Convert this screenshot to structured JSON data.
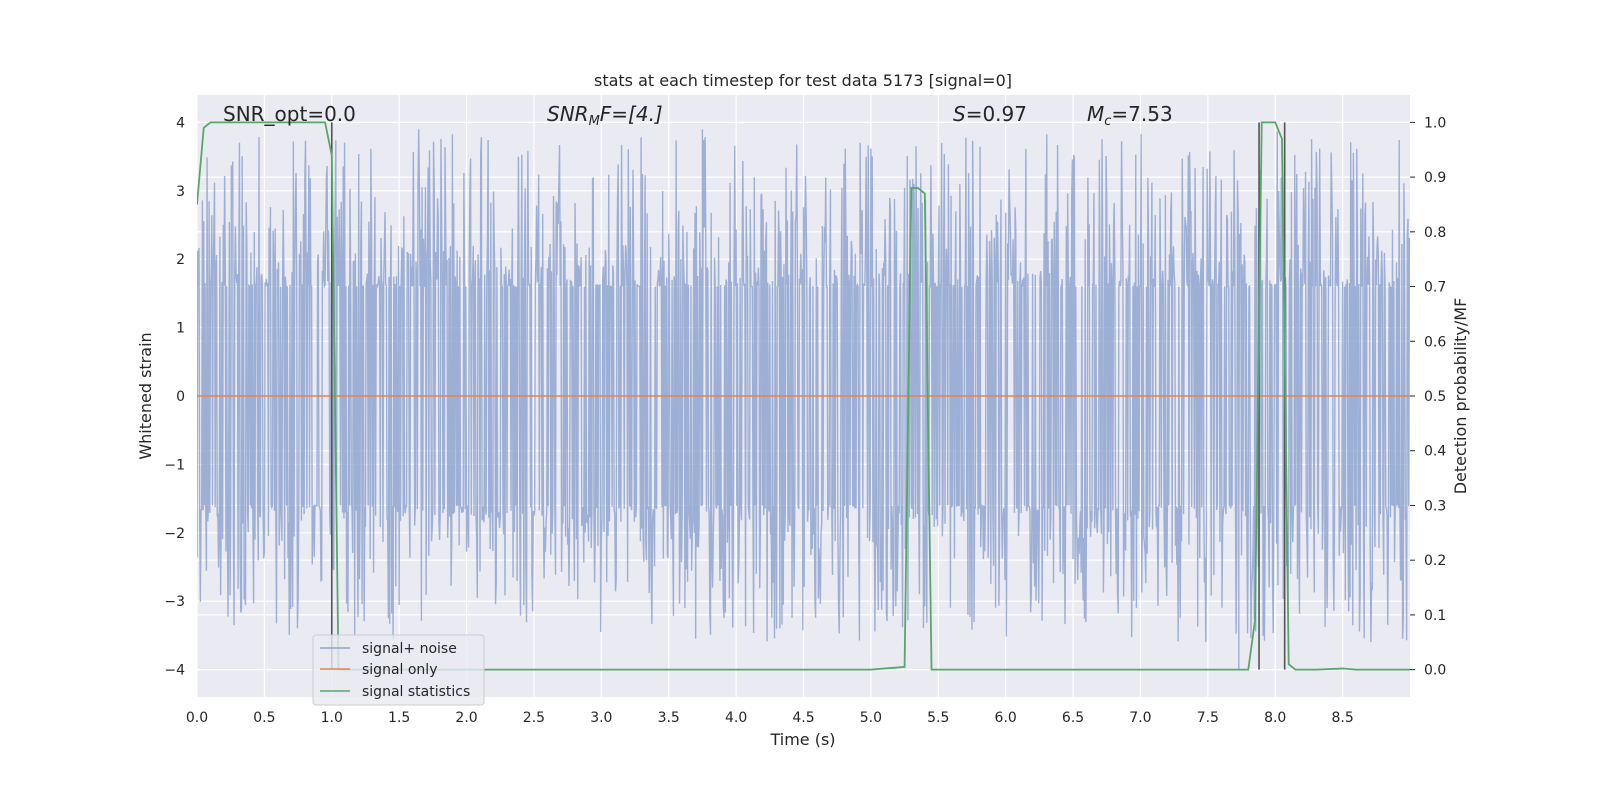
{
  "chart_data": {
    "type": "line",
    "title": "stats at each timestep for test data 5173 [signal=0]",
    "xlabel": "Time (s)",
    "ylabel": "Whitened strain",
    "ylabel_right": "Detection probability/MF",
    "xlim": [
      0.0,
      9.0
    ],
    "ylim_left": [
      -4.4,
      4.4
    ],
    "ylim_right": [
      -0.05,
      1.05
    ],
    "x_ticks": [
      "0.0",
      "0.5",
      "1.0",
      "1.5",
      "2.0",
      "2.5",
      "3.0",
      "3.5",
      "4.0",
      "4.5",
      "5.0",
      "5.5",
      "6.0",
      "6.5",
      "7.0",
      "7.5",
      "8.0",
      "8.5"
    ],
    "y_ticks_left": [
      "4",
      "3",
      "2",
      "1",
      "0",
      "−1",
      "−2",
      "−3",
      "−4"
    ],
    "y_ticks_right": [
      "1.0",
      "0.9",
      "0.8",
      "0.7",
      "0.6",
      "0.5",
      "0.4",
      "0.3",
      "0.2",
      "0.1",
      "0.0"
    ],
    "grid": true,
    "annotations": {
      "snr_opt": "SNR_opt=0.0",
      "snr_mf_base": "SNR",
      "snr_mf_sub": "M",
      "snr_mf_rest": "F=[4.]",
      "s_italic": "S",
      "s_rest": "=0.97",
      "mc_italic": "M",
      "mc_sub": "c",
      "mc_rest": "=7.53"
    },
    "legend": {
      "position": "lower-left",
      "entries": [
        "signal+ noise",
        "signal only",
        "signal statistics"
      ]
    },
    "colors": {
      "noise": "#8fa4cf",
      "signal": "#dd8452",
      "stats": "#55a868",
      "vline": "#555555",
      "background": "#eaeaf2",
      "grid": "#ffffff"
    },
    "series": [
      {
        "name": "signal+ noise",
        "axis": "left",
        "noise_envelope": {
          "typical_band": [
            -1.6,
            1.6
          ],
          "peak_range": [
            -3.6,
            3.9
          ],
          "extremes": {
            "max": 3.9,
            "min": -4.0
          }
        }
      },
      {
        "name": "signal only",
        "axis": "left",
        "x": [
          0.0,
          9.0
        ],
        "y": [
          0.0,
          0.0
        ]
      },
      {
        "name": "signal statistics",
        "axis": "right",
        "x": [
          0.0,
          0.05,
          0.1,
          0.2,
          0.5,
          0.95,
          1.0,
          1.05,
          1.1,
          1.5,
          2.0,
          3.0,
          4.0,
          5.0,
          5.25,
          5.3,
          5.35,
          5.4,
          5.45,
          5.5,
          6.0,
          7.0,
          7.8,
          7.85,
          7.9,
          7.95,
          8.0,
          8.05,
          8.1,
          8.15,
          8.2,
          8.3,
          8.5,
          8.6,
          9.0
        ],
        "y": [
          0.85,
          0.99,
          1.0,
          1.0,
          1.0,
          1.0,
          0.94,
          0.0,
          0.0,
          0.0,
          0.0,
          0.0,
          0.0,
          0.0,
          0.005,
          0.88,
          0.88,
          0.87,
          0.0,
          0.0,
          0.0,
          0.0,
          0.0,
          0.09,
          1.0,
          1.0,
          1.0,
          0.97,
          0.01,
          0.0,
          0.0,
          0.0,
          0.002,
          0.0,
          0.0
        ]
      }
    ],
    "vertical_lines_x": [
      1.0,
      7.88,
      8.07
    ]
  }
}
